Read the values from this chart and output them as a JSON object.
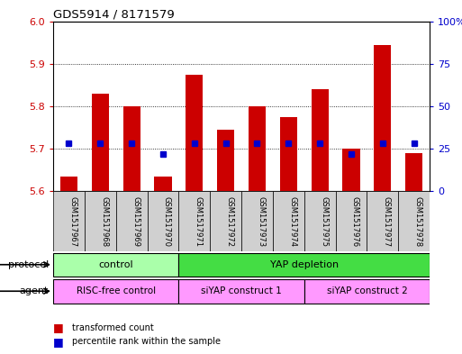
{
  "title": "GDS5914 / 8171579",
  "samples": [
    "GSM1517967",
    "GSM1517968",
    "GSM1517969",
    "GSM1517970",
    "GSM1517971",
    "GSM1517972",
    "GSM1517973",
    "GSM1517974",
    "GSM1517975",
    "GSM1517976",
    "GSM1517977",
    "GSM1517978"
  ],
  "transformed_counts": [
    5.635,
    5.83,
    5.8,
    5.635,
    5.875,
    5.745,
    5.8,
    5.775,
    5.84,
    5.7,
    5.945,
    5.69
  ],
  "percentile_ranks": [
    28,
    28,
    28,
    22,
    28,
    28,
    28,
    28,
    28,
    22,
    28,
    28
  ],
  "ylim_left": [
    5.6,
    6.0
  ],
  "ylim_right": [
    0,
    100
  ],
  "yticks_left": [
    5.6,
    5.7,
    5.8,
    5.9,
    6.0
  ],
  "yticks_right": [
    0,
    25,
    50,
    75,
    100
  ],
  "ytick_labels_right": [
    "0",
    "25",
    "50",
    "75",
    "100%"
  ],
  "bar_color": "#cc0000",
  "bar_bottom": 5.6,
  "marker_color": "#0000cc",
  "marker_size": 5,
  "protocol_groups": [
    {
      "label": "control",
      "start": 0,
      "end": 3,
      "color": "#aaffaa"
    },
    {
      "label": "YAP depletion",
      "start": 4,
      "end": 11,
      "color": "#44dd44"
    }
  ],
  "agent_groups": [
    {
      "label": "RISC-free control",
      "start": 0,
      "end": 3,
      "color": "#ff99ff"
    },
    {
      "label": "siYAP construct 1",
      "start": 4,
      "end": 7,
      "color": "#ff99ff"
    },
    {
      "label": "siYAP construct 2",
      "start": 8,
      "end": 11,
      "color": "#ff99ff"
    }
  ],
  "tick_label_color_left": "#cc0000",
  "tick_label_color_right": "#0000cc",
  "label_protocol": "protocol",
  "label_agent": "agent",
  "legend_items": [
    {
      "label": "transformed count",
      "color": "#cc0000"
    },
    {
      "label": "percentile rank within the sample",
      "color": "#0000cc"
    }
  ]
}
